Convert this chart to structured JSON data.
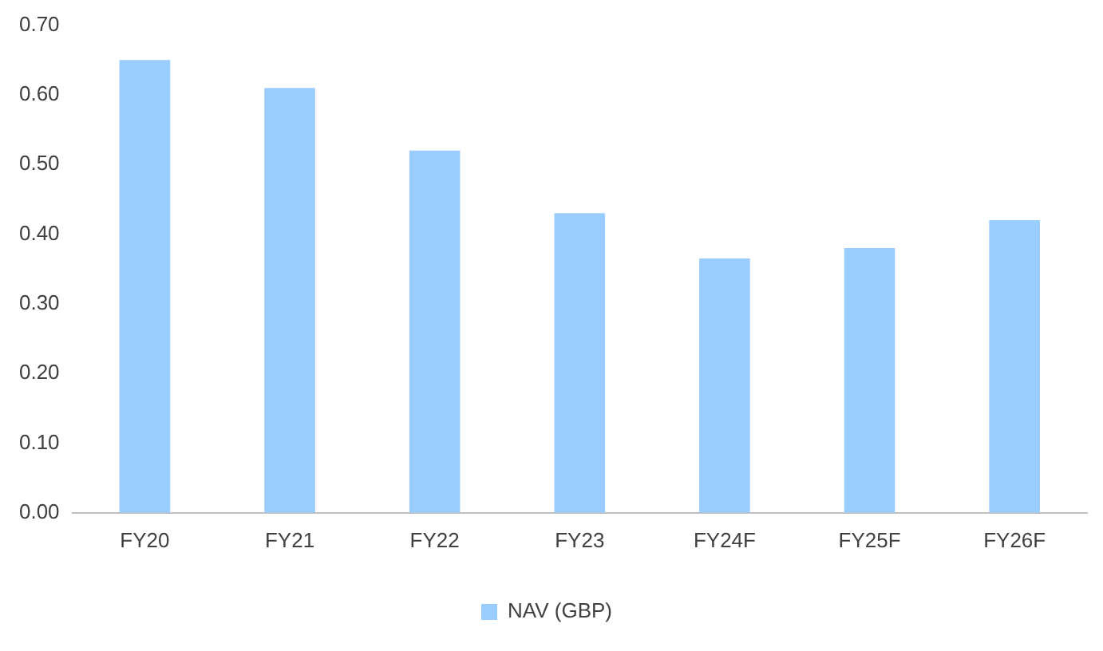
{
  "chart_data": {
    "type": "bar",
    "categories": [
      "FY20",
      "FY21",
      "FY22",
      "FY23",
      "FY24F",
      "FY25F",
      "FY26F"
    ],
    "series": [
      {
        "name": "NAV (GBP)",
        "color": "#99ccff",
        "values": [
          0.65,
          0.61,
          0.52,
          0.43,
          0.365,
          0.38,
          0.42
        ]
      }
    ],
    "ylim": [
      0,
      0.7
    ],
    "yticks": [
      {
        "value": 0,
        "label": "0.00"
      },
      {
        "value": 0.1,
        "label": "0.10"
      },
      {
        "value": 0.2,
        "label": "0.20"
      },
      {
        "value": 0.3,
        "label": "0.30"
      },
      {
        "value": 0.4,
        "label": "0.40"
      },
      {
        "value": 0.5,
        "label": "0.50"
      },
      {
        "value": 0.6,
        "label": "0.60"
      },
      {
        "value": 0.7,
        "label": "0.70"
      }
    ],
    "grid": false,
    "legend": "bottom"
  }
}
